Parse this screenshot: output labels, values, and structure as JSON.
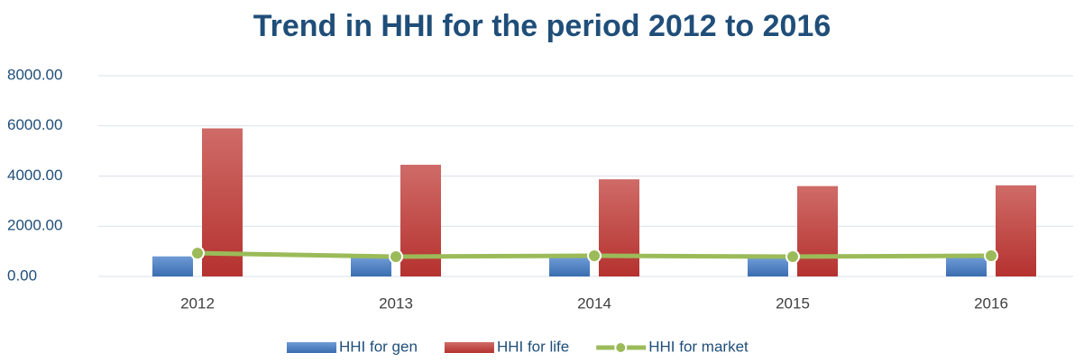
{
  "chart_data": {
    "type": "bar-line",
    "title": "Trend in HHI for the period 2012 to 2016",
    "categories": [
      "2012",
      "2013",
      "2014",
      "2015",
      "2016"
    ],
    "series": [
      {
        "name": "HHI for gen",
        "type": "bar",
        "color": "#4a7ebb",
        "values": [
          800,
          750,
          760,
          740,
          760
        ]
      },
      {
        "name": "HHI for life",
        "type": "bar",
        "color": "#c0504d",
        "values": [
          5900,
          4450,
          3870,
          3600,
          3630
        ]
      },
      {
        "name": "HHI for market",
        "type": "line",
        "color": "#9bbb59",
        "values": [
          930,
          790,
          825,
          790,
          825
        ]
      }
    ],
    "ylim": [
      0,
      8000
    ],
    "yticks": [
      {
        "value": 0,
        "label": "0.00"
      },
      {
        "value": 2000,
        "label": "2000.00"
      },
      {
        "value": 4000,
        "label": "4000.00"
      },
      {
        "value": 6000,
        "label": "6000.00"
      },
      {
        "value": 8000,
        "label": "8000.00"
      }
    ],
    "grid": true,
    "legend": "bottom"
  }
}
